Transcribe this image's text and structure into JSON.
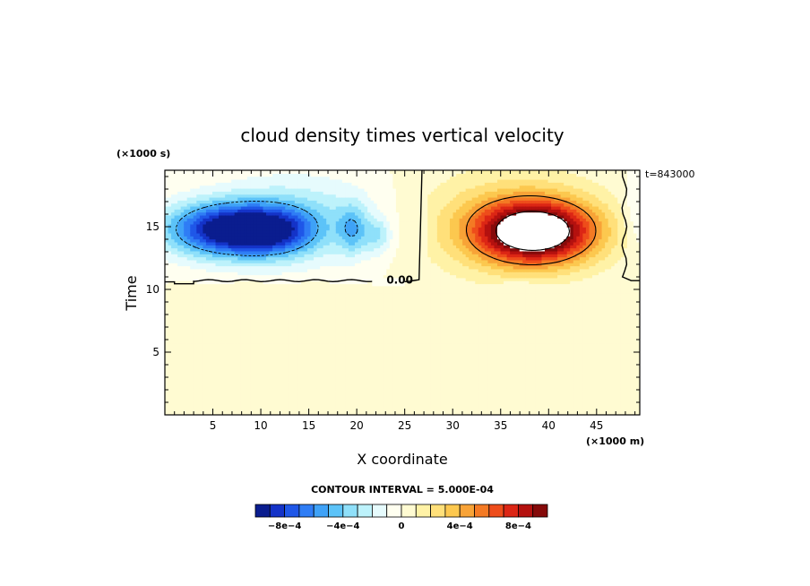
{
  "chart_data": {
    "type": "heatmap",
    "title": "cloud density times vertical velocity",
    "xlabel": "X coordinate",
    "ylabel": "Time",
    "x_units": "(×1000 m)",
    "y_units": "(×1000 s)",
    "time_label": "t=843000",
    "xlim": [
      0,
      49.5
    ],
    "ylim": [
      0,
      19.5
    ],
    "x_ticks": [
      5,
      10,
      15,
      20,
      25,
      30,
      35,
      40,
      45
    ],
    "y_ticks": [
      5,
      10,
      15
    ],
    "contour_label": "0.00",
    "contour_interval_text": "CONTOUR INTERVAL = 5.000E-04",
    "contour_interval": 0.0005,
    "levels": [
      -0.001,
      -0.0009,
      -0.0008,
      -0.0007,
      -0.0006,
      -0.0005,
      -0.0004,
      -0.0003,
      -0.0002,
      -0.0001,
      0,
      0.0001,
      0.0002,
      0.0003,
      0.0004,
      0.0005,
      0.0006,
      0.0007,
      0.0008,
      0.0009,
      0.001
    ],
    "colorbar_colors": [
      "#0a1d8f",
      "#1433c8",
      "#1f57e8",
      "#2f7df5",
      "#3fa2f7",
      "#5cc3f8",
      "#8fe0fa",
      "#bdf2fb",
      "#e6fbfd",
      "#fffff0",
      "#fffbd2",
      "#fff2a6",
      "#ffe07a",
      "#fcc84f",
      "#f8a337",
      "#f47a24",
      "#ee4d1b",
      "#dc2615",
      "#b4110f",
      "#850a0a"
    ],
    "colorbar_labels": [
      {
        "value": -0.0008,
        "text": "−8e−4"
      },
      {
        "value": -0.0004,
        "text": "−4e−4"
      },
      {
        "value": 0,
        "text": "0"
      },
      {
        "value": 0.0004,
        "text": "4e−4"
      },
      {
        "value": 0.0008,
        "text": "8e−4"
      }
    ],
    "background_value": 5e-05,
    "blobs": [
      {
        "x": 6.5,
        "y": 14.8,
        "sx": 4.5,
        "sy": 1.5,
        "amp": -0.00095
      },
      {
        "x": 11.5,
        "y": 14.6,
        "sx": 3.0,
        "sy": 1.3,
        "amp": -0.0004
      },
      {
        "x": 14,
        "y": 15.6,
        "sx": 6.0,
        "sy": 2.4,
        "amp": -0.0003
      },
      {
        "x": 19.6,
        "y": 14.8,
        "sx": 1.1,
        "sy": 1.4,
        "amp": -0.00035
      },
      {
        "x": 22.2,
        "y": 14.3,
        "sx": 1.0,
        "sy": 1.0,
        "amp": -0.00025
      },
      {
        "x": 38.6,
        "y": 14.6,
        "sx": 4.2,
        "sy": 1.7,
        "amp": 0.00115
      },
      {
        "x": 36.0,
        "y": 15.3,
        "sx": 7.0,
        "sy": 3.0,
        "amp": 0.0003
      },
      {
        "x": 49.3,
        "y": 16.2,
        "sx": 1.0,
        "sy": 2.2,
        "amp": -0.00015
      }
    ]
  }
}
